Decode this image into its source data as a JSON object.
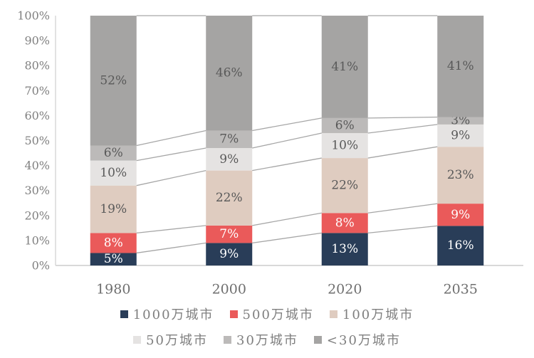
{
  "chart_data": {
    "type": "bar",
    "stacked": true,
    "percent_stack": true,
    "title": "",
    "categories": [
      "1980",
      "2000",
      "2020",
      "2035"
    ],
    "series": [
      {
        "name": "1000万城市",
        "color": "#293d58",
        "label_color": "#ffffff",
        "values": [
          5,
          9,
          13,
          16
        ]
      },
      {
        "name": "500万城市",
        "color": "#ea5a5a",
        "label_color": "#ffffff",
        "values": [
          8,
          7,
          8,
          9
        ]
      },
      {
        "name": "100万城市",
        "color": "#dfccc0",
        "label_color": "#595959",
        "values": [
          19,
          22,
          22,
          23
        ]
      },
      {
        "name": "50万城市",
        "color": "#e5e3e2",
        "label_color": "#595959",
        "values": [
          10,
          9,
          10,
          9
        ]
      },
      {
        "name": "30万城市",
        "color": "#bcbab9",
        "label_color": "#595959",
        "values": [
          6,
          7,
          6,
          3
        ]
      },
      {
        "name": "<30万城市",
        "color": "#a5a4a3",
        "label_color": "#595959",
        "values": [
          52,
          46,
          41,
          41
        ]
      }
    ],
    "data_labels": [
      [
        "5%",
        "9%",
        "13%",
        "16%"
      ],
      [
        "8%",
        "7%",
        "8%",
        "9%"
      ],
      [
        "19%",
        "22%",
        "22%",
        "23%"
      ],
      [
        "10%",
        "9%",
        "10%",
        "9%"
      ],
      [
        "6%",
        "7%",
        "6%",
        "3%"
      ],
      [
        "52%",
        "46%",
        "41%",
        "41%"
      ]
    ],
    "y_axis": {
      "min": 0,
      "max": 100,
      "tick_labels": [
        "0%",
        "10%",
        "20%",
        "30%",
        "40%",
        "50%",
        "60%",
        "70%",
        "80%",
        "90%",
        "100%"
      ]
    },
    "grid": false,
    "connector_lines": true,
    "legend_position": "bottom",
    "legend_rows": 2,
    "value_suffix": "%"
  },
  "style": {
    "axis_line_color": "#d9d9d9",
    "connector_line_color": "#a6a6a6",
    "tick_label_color": "#808080",
    "category_label_color": "#6e6e6e",
    "legend_text_color": "#7f7f7f"
  }
}
